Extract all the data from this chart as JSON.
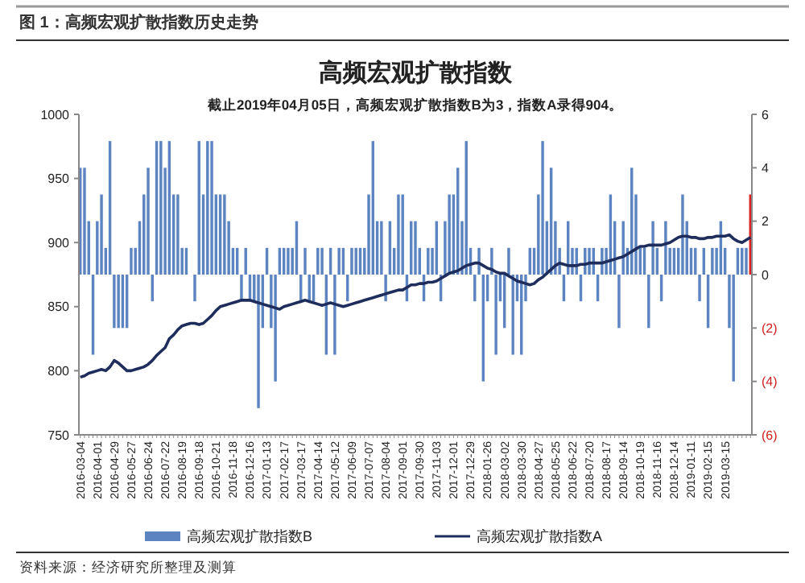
{
  "chart_data": {
    "type": "bar",
    "title": "高频宏观扩散指数",
    "subtitle": "截止2019年04月05日，高频宏观扩散指数B为3，指数A录得904。",
    "annotations": [
      "图 1：高频宏观扩散指数历史走势",
      "资料来源：经济研究所整理及测算"
    ],
    "categories": [
      "2016-03-04",
      null,
      null,
      null,
      "2016-04-01",
      null,
      null,
      null,
      "2016-04-29",
      null,
      null,
      null,
      "2016-05-27",
      null,
      null,
      null,
      "2016-06-24",
      null,
      null,
      null,
      "2016-07-22",
      null,
      null,
      null,
      "2016-08-19",
      null,
      null,
      null,
      "2016-09-18",
      null,
      null,
      null,
      "2016-10-21",
      null,
      null,
      null,
      "2016-11-18",
      null,
      null,
      null,
      "2016-12-16",
      null,
      null,
      null,
      "2017-01-13",
      null,
      null,
      null,
      "2017-02-17",
      null,
      null,
      null,
      "2017-03-17",
      null,
      null,
      null,
      "2017-04-14",
      null,
      null,
      null,
      "2017-05-12",
      null,
      null,
      null,
      "2017-06-09",
      null,
      null,
      null,
      "2017-07-07",
      null,
      null,
      null,
      "2017-08-04",
      null,
      null,
      null,
      "2017-09-01",
      null,
      null,
      null,
      "2017-09-30",
      null,
      null,
      null,
      "2017-11-03",
      null,
      null,
      null,
      "2017-12-01",
      null,
      null,
      null,
      "2017-12-29",
      null,
      null,
      null,
      "2018-01-26",
      null,
      null,
      null,
      "2018-03-02",
      null,
      null,
      null,
      "2018-03-30",
      null,
      null,
      null,
      "2018-04-27",
      null,
      null,
      null,
      "2018-05-25",
      null,
      null,
      null,
      "2018-06-22",
      null,
      null,
      null,
      "2018-07-20",
      null,
      null,
      null,
      "2018-08-17",
      null,
      null,
      null,
      "2018-09-14",
      null,
      null,
      null,
      "2018-10-19",
      null,
      null,
      null,
      "2018-11-16",
      null,
      null,
      null,
      "2018-12-14",
      null,
      null,
      null,
      "2019-01-11",
      null,
      null,
      null,
      "2019-02-15",
      null,
      null,
      null,
      "2019-03-15",
      null,
      null,
      null,
      null,
      null,
      null
    ],
    "series": [
      {
        "name": "高频宏观扩散指数B",
        "axis": "y2",
        "color": "#5b84c0",
        "colors": [
          "#5b84c0",
          "#5b84c0",
          "#5b84c0",
          "#5b84c0",
          "#5b84c0",
          "#5b84c0",
          "#5b84c0",
          "#5b84c0",
          "#5b84c0",
          "#5b84c0",
          "#5b84c0",
          "#5b84c0",
          "#5b84c0",
          "#5b84c0",
          "#5b84c0",
          "#5b84c0",
          "#5b84c0",
          "#5b84c0",
          "#5b84c0",
          "#5b84c0",
          "#5b84c0",
          "#5b84c0",
          "#5b84c0",
          "#5b84c0",
          "#5b84c0",
          "#5b84c0",
          "#5b84c0",
          "#5b84c0",
          "#5b84c0",
          "#5b84c0",
          "#5b84c0",
          "#5b84c0",
          "#5b84c0",
          "#5b84c0",
          "#5b84c0",
          "#5b84c0",
          "#5b84c0",
          "#5b84c0",
          "#5b84c0",
          "#5b84c0",
          "#5b84c0",
          "#5b84c0",
          "#5b84c0",
          "#5b84c0",
          "#5b84c0",
          "#5b84c0",
          "#5b84c0",
          "#5b84c0",
          "#5b84c0",
          "#5b84c0",
          "#5b84c0",
          "#5b84c0",
          "#5b84c0",
          "#5b84c0",
          "#5b84c0",
          "#5b84c0",
          "#5b84c0",
          "#5b84c0",
          "#5b84c0",
          "#5b84c0",
          "#5b84c0",
          "#5b84c0",
          "#5b84c0",
          "#5b84c0",
          "#5b84c0",
          "#5b84c0",
          "#5b84c0",
          "#5b84c0",
          "#5b84c0",
          "#5b84c0",
          "#5b84c0",
          "#5b84c0",
          "#5b84c0",
          "#5b84c0",
          "#5b84c0",
          "#5b84c0",
          "#5b84c0",
          "#5b84c0",
          "#5b84c0",
          "#5b84c0",
          "#5b84c0",
          "#5b84c0",
          "#5b84c0",
          "#5b84c0",
          "#5b84c0",
          "#5b84c0",
          "#5b84c0",
          "#5b84c0",
          "#5b84c0",
          "#5b84c0",
          "#5b84c0",
          "#5b84c0",
          "#5b84c0",
          "#5b84c0",
          "#5b84c0",
          "#5b84c0",
          "#5b84c0",
          "#5b84c0",
          "#5b84c0",
          "#5b84c0",
          "#5b84c0",
          "#5b84c0",
          "#5b84c0",
          "#5b84c0",
          "#5b84c0",
          "#5b84c0",
          "#5b84c0",
          "#5b84c0",
          "#5b84c0",
          "#5b84c0",
          "#5b84c0",
          "#5b84c0",
          "#5b84c0",
          "#5b84c0",
          "#5b84c0",
          "#5b84c0",
          "#5b84c0",
          "#5b84c0",
          "#5b84c0",
          "#5b84c0",
          "#5b84c0",
          "#5b84c0",
          "#5b84c0",
          "#5b84c0",
          "#5b84c0",
          "#5b84c0",
          "#5b84c0",
          "#5b84c0",
          "#5b84c0",
          "#5b84c0",
          "#5b84c0",
          "#5b84c0",
          "#5b84c0",
          "#5b84c0",
          "#5b84c0",
          "#5b84c0",
          "#5b84c0",
          "#5b84c0",
          "#5b84c0",
          "#5b84c0",
          "#5b84c0",
          "#5b84c0",
          "#5b84c0",
          "#5b84c0",
          "#5b84c0",
          "#5b84c0",
          "#5b84c0",
          "#5b84c0",
          "#5b84c0",
          "#5b84c0",
          "#5b84c0",
          "#5b84c0",
          "#5b84c0",
          "#5b84c0",
          "#5b84c0",
          "#5b84c0",
          "#5b84c0",
          "#5b84c0",
          "#e02020"
        ],
        "values": [
          4,
          4,
          2,
          -3,
          2,
          3,
          1,
          5,
          -2,
          -2,
          -2,
          -2,
          1,
          1,
          2,
          3,
          4,
          -1,
          5,
          5,
          4,
          5,
          3,
          3,
          1,
          1,
          0,
          -1,
          5,
          3,
          5,
          5,
          3,
          3,
          3,
          2,
          1,
          1,
          -1,
          1,
          -1,
          -1,
          -5,
          -2,
          1,
          -2,
          -4,
          1,
          1,
          1,
          1,
          2,
          -1,
          1,
          -1,
          -1,
          1,
          1,
          -3,
          1,
          -3,
          1,
          1,
          -1,
          1,
          1,
          1,
          1,
          3,
          5,
          2,
          2,
          -1,
          2,
          1,
          3,
          3,
          -1,
          2,
          2,
          1,
          -1,
          1,
          1,
          2,
          -1,
          2,
          3,
          3,
          4,
          2,
          5,
          1,
          -1,
          1,
          -4,
          -1,
          1,
          -3,
          -1,
          -2,
          1,
          -3,
          -1,
          -3,
          -1,
          1,
          1,
          3,
          5,
          2,
          4,
          2,
          1,
          -1,
          2,
          1,
          1,
          -1,
          1,
          1,
          1,
          -1,
          1,
          1,
          3,
          2,
          -2,
          2,
          1,
          4,
          3,
          1,
          1,
          -2,
          2,
          1,
          -1,
          2,
          1,
          1,
          1,
          3,
          2,
          1,
          1,
          -1,
          1,
          -2,
          1,
          1,
          2,
          1,
          -2,
          -4,
          1,
          1,
          1,
          3
        ]
      },
      {
        "name": "高频宏观扩散指数A",
        "type": "line",
        "axis": "y",
        "color": "#1f2d5c",
        "line_style": "solid",
        "values": [
          795,
          796,
          798,
          799,
          800,
          801,
          800,
          803,
          808,
          806,
          803,
          800,
          800,
          801,
          802,
          803,
          805,
          808,
          812,
          815,
          818,
          825,
          828,
          832,
          835,
          836,
          837,
          837,
          836,
          837,
          840,
          843,
          847,
          850,
          851,
          852,
          853,
          854,
          855,
          855,
          855,
          854,
          853,
          852,
          851,
          850,
          849,
          848,
          850,
          851,
          852,
          853,
          854,
          855,
          854,
          853,
          852,
          851,
          852,
          853,
          852,
          851,
          850,
          851,
          852,
          853,
          854,
          855,
          856,
          857,
          858,
          859,
          860,
          861,
          862,
          863,
          863,
          865,
          867,
          867,
          868,
          868,
          869,
          869,
          870,
          872,
          874,
          876,
          877,
          878,
          880,
          882,
          883,
          884,
          884,
          882,
          880,
          879,
          877,
          876,
          876,
          874,
          872,
          870,
          869,
          868,
          867,
          868,
          871,
          873,
          876,
          879,
          882,
          884,
          883,
          882,
          882,
          882,
          883,
          883,
          884,
          884,
          884,
          884,
          885,
          886,
          887,
          888,
          889,
          891,
          893,
          895,
          897,
          897,
          898,
          898,
          898,
          898,
          899,
          900,
          902,
          904,
          905,
          905,
          904,
          904,
          903,
          903,
          904,
          904,
          905,
          905,
          905,
          906,
          903,
          901,
          900,
          902,
          904
        ]
      }
    ],
    "ylim": [
      750,
      1000
    ],
    "yticks": [
      750,
      800,
      850,
      900,
      950,
      1000
    ],
    "y2lim": [
      -6,
      6
    ],
    "y2ticks": [
      {
        "value": -6,
        "label": "(6)"
      },
      {
        "value": -4,
        "label": "(4)"
      },
      {
        "value": -2,
        "label": "(2)"
      },
      0,
      2,
      4,
      6
    ],
    "legend": "bottom",
    "grid": false
  }
}
